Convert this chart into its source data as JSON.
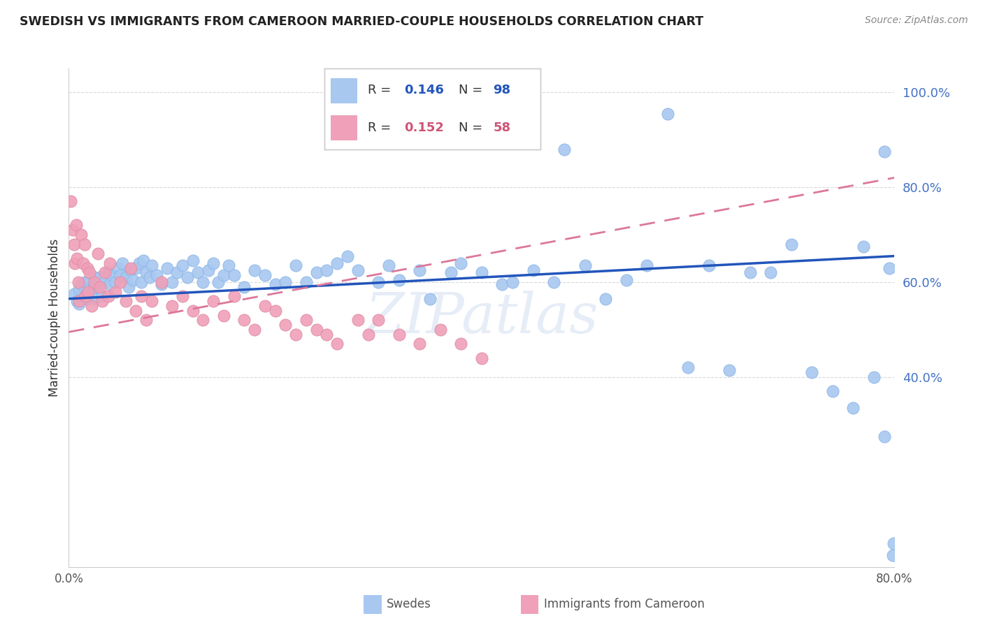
{
  "title": "SWEDISH VS IMMIGRANTS FROM CAMEROON MARRIED-COUPLE HOUSEHOLDS CORRELATION CHART",
  "source": "Source: ZipAtlas.com",
  "ylabel": "Married-couple Households",
  "swedes_color": "#a8c8f0",
  "cameroon_color": "#f0a0b8",
  "trendline_swedes_color": "#2255bb",
  "trendline_cameroon_color": "#dd7799",
  "watermark": "ZIPatlas",
  "xlim": [
    0.0,
    0.8
  ],
  "ylim": [
    0.0,
    1.05
  ],
  "trendline_swedes": [
    0.565,
    0.655
  ],
  "trendline_cameroon": [
    0.495,
    0.82
  ],
  "swedes_x": [
    0.005,
    0.008,
    0.01,
    0.01,
    0.012,
    0.015,
    0.015,
    0.018,
    0.018,
    0.02,
    0.022,
    0.025,
    0.025,
    0.025,
    0.028,
    0.03,
    0.032,
    0.035,
    0.038,
    0.04,
    0.042,
    0.045,
    0.048,
    0.05,
    0.052,
    0.055,
    0.058,
    0.06,
    0.062,
    0.065,
    0.068,
    0.07,
    0.072,
    0.075,
    0.078,
    0.08,
    0.085,
    0.09,
    0.095,
    0.1,
    0.105,
    0.11,
    0.115,
    0.12,
    0.125,
    0.13,
    0.135,
    0.14,
    0.145,
    0.15,
    0.155,
    0.16,
    0.17,
    0.18,
    0.19,
    0.2,
    0.21,
    0.22,
    0.23,
    0.24,
    0.25,
    0.26,
    0.27,
    0.28,
    0.3,
    0.31,
    0.32,
    0.34,
    0.35,
    0.37,
    0.38,
    0.4,
    0.42,
    0.43,
    0.45,
    0.47,
    0.48,
    0.5,
    0.52,
    0.54,
    0.56,
    0.58,
    0.6,
    0.62,
    0.64,
    0.66,
    0.68,
    0.7,
    0.72,
    0.74,
    0.76,
    0.77,
    0.78,
    0.79,
    0.79,
    0.795,
    0.798,
    0.799
  ],
  "swedes_y": [
    0.575,
    0.56,
    0.585,
    0.555,
    0.595,
    0.57,
    0.6,
    0.565,
    0.6,
    0.585,
    0.575,
    0.595,
    0.61,
    0.565,
    0.59,
    0.61,
    0.57,
    0.6,
    0.62,
    0.595,
    0.615,
    0.6,
    0.63,
    0.615,
    0.64,
    0.61,
    0.59,
    0.625,
    0.605,
    0.63,
    0.64,
    0.6,
    0.645,
    0.62,
    0.61,
    0.635,
    0.615,
    0.595,
    0.63,
    0.6,
    0.62,
    0.635,
    0.61,
    0.645,
    0.62,
    0.6,
    0.625,
    0.64,
    0.6,
    0.615,
    0.635,
    0.615,
    0.59,
    0.625,
    0.615,
    0.595,
    0.6,
    0.635,
    0.6,
    0.62,
    0.625,
    0.64,
    0.655,
    0.625,
    0.6,
    0.635,
    0.605,
    0.625,
    0.565,
    0.62,
    0.64,
    0.62,
    0.595,
    0.6,
    0.625,
    0.6,
    0.88,
    0.635,
    0.565,
    0.605,
    0.635,
    0.955,
    0.42,
    0.635,
    0.415,
    0.62,
    0.62,
    0.68,
    0.41,
    0.37,
    0.335,
    0.675,
    0.4,
    0.275,
    0.875,
    0.63,
    0.025,
    0.05
  ],
  "cameroon_x": [
    0.002,
    0.004,
    0.005,
    0.006,
    0.007,
    0.008,
    0.009,
    0.01,
    0.012,
    0.014,
    0.015,
    0.016,
    0.018,
    0.019,
    0.02,
    0.022,
    0.025,
    0.028,
    0.03,
    0.032,
    0.035,
    0.038,
    0.04,
    0.045,
    0.05,
    0.055,
    0.06,
    0.065,
    0.07,
    0.075,
    0.08,
    0.09,
    0.1,
    0.11,
    0.12,
    0.13,
    0.14,
    0.15,
    0.16,
    0.17,
    0.18,
    0.19,
    0.2,
    0.21,
    0.22,
    0.23,
    0.24,
    0.25,
    0.26,
    0.28,
    0.29,
    0.3,
    0.32,
    0.34,
    0.36,
    0.38,
    0.4
  ],
  "cameroon_y": [
    0.77,
    0.71,
    0.68,
    0.64,
    0.72,
    0.65,
    0.6,
    0.56,
    0.7,
    0.64,
    0.68,
    0.57,
    0.63,
    0.58,
    0.62,
    0.55,
    0.6,
    0.66,
    0.59,
    0.56,
    0.62,
    0.57,
    0.64,
    0.58,
    0.6,
    0.56,
    0.63,
    0.54,
    0.57,
    0.52,
    0.56,
    0.6,
    0.55,
    0.57,
    0.54,
    0.52,
    0.56,
    0.53,
    0.57,
    0.52,
    0.5,
    0.55,
    0.54,
    0.51,
    0.49,
    0.52,
    0.5,
    0.49,
    0.47,
    0.52,
    0.49,
    0.52,
    0.49,
    0.47,
    0.5,
    0.47,
    0.44
  ]
}
